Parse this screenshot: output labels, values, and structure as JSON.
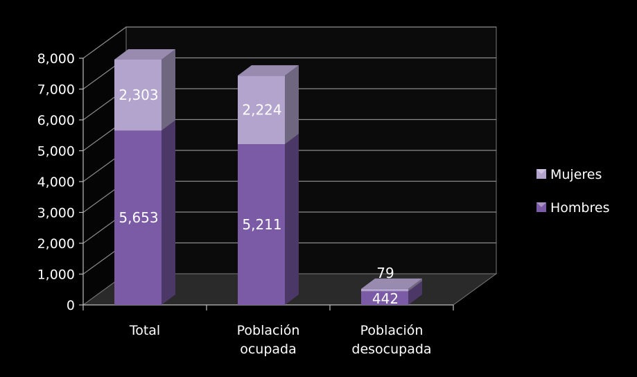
{
  "chart_data": {
    "type": "bar",
    "stacked": true,
    "three_d": true,
    "categories": [
      "Total",
      "Población ocupada",
      "Población desocupada"
    ],
    "category_label_lines": [
      [
        "Total"
      ],
      [
        "Población",
        "ocupada"
      ],
      [
        "Población",
        "desocupada"
      ]
    ],
    "series": [
      {
        "name": "Hombres",
        "values": [
          5653,
          5211,
          442
        ],
        "labels": [
          "5,653",
          "5,211",
          "442"
        ],
        "color": "#7b5aa6"
      },
      {
        "name": "Mujeres",
        "values": [
          2303,
          2224,
          79
        ],
        "labels": [
          "2,303",
          "2,224",
          "79"
        ],
        "color": "#b3a4ce"
      }
    ],
    "y_ticks": [
      "0",
      "1,000",
      "2,000",
      "3,000",
      "4,000",
      "5,000",
      "6,000",
      "7,000",
      "8,000"
    ],
    "ylim": [
      0,
      8000
    ],
    "title": "",
    "xlabel": "",
    "ylabel": "",
    "grid": true,
    "legend_position": "right",
    "background_color": "#000000",
    "gridline_color": "#8c8c8c"
  }
}
